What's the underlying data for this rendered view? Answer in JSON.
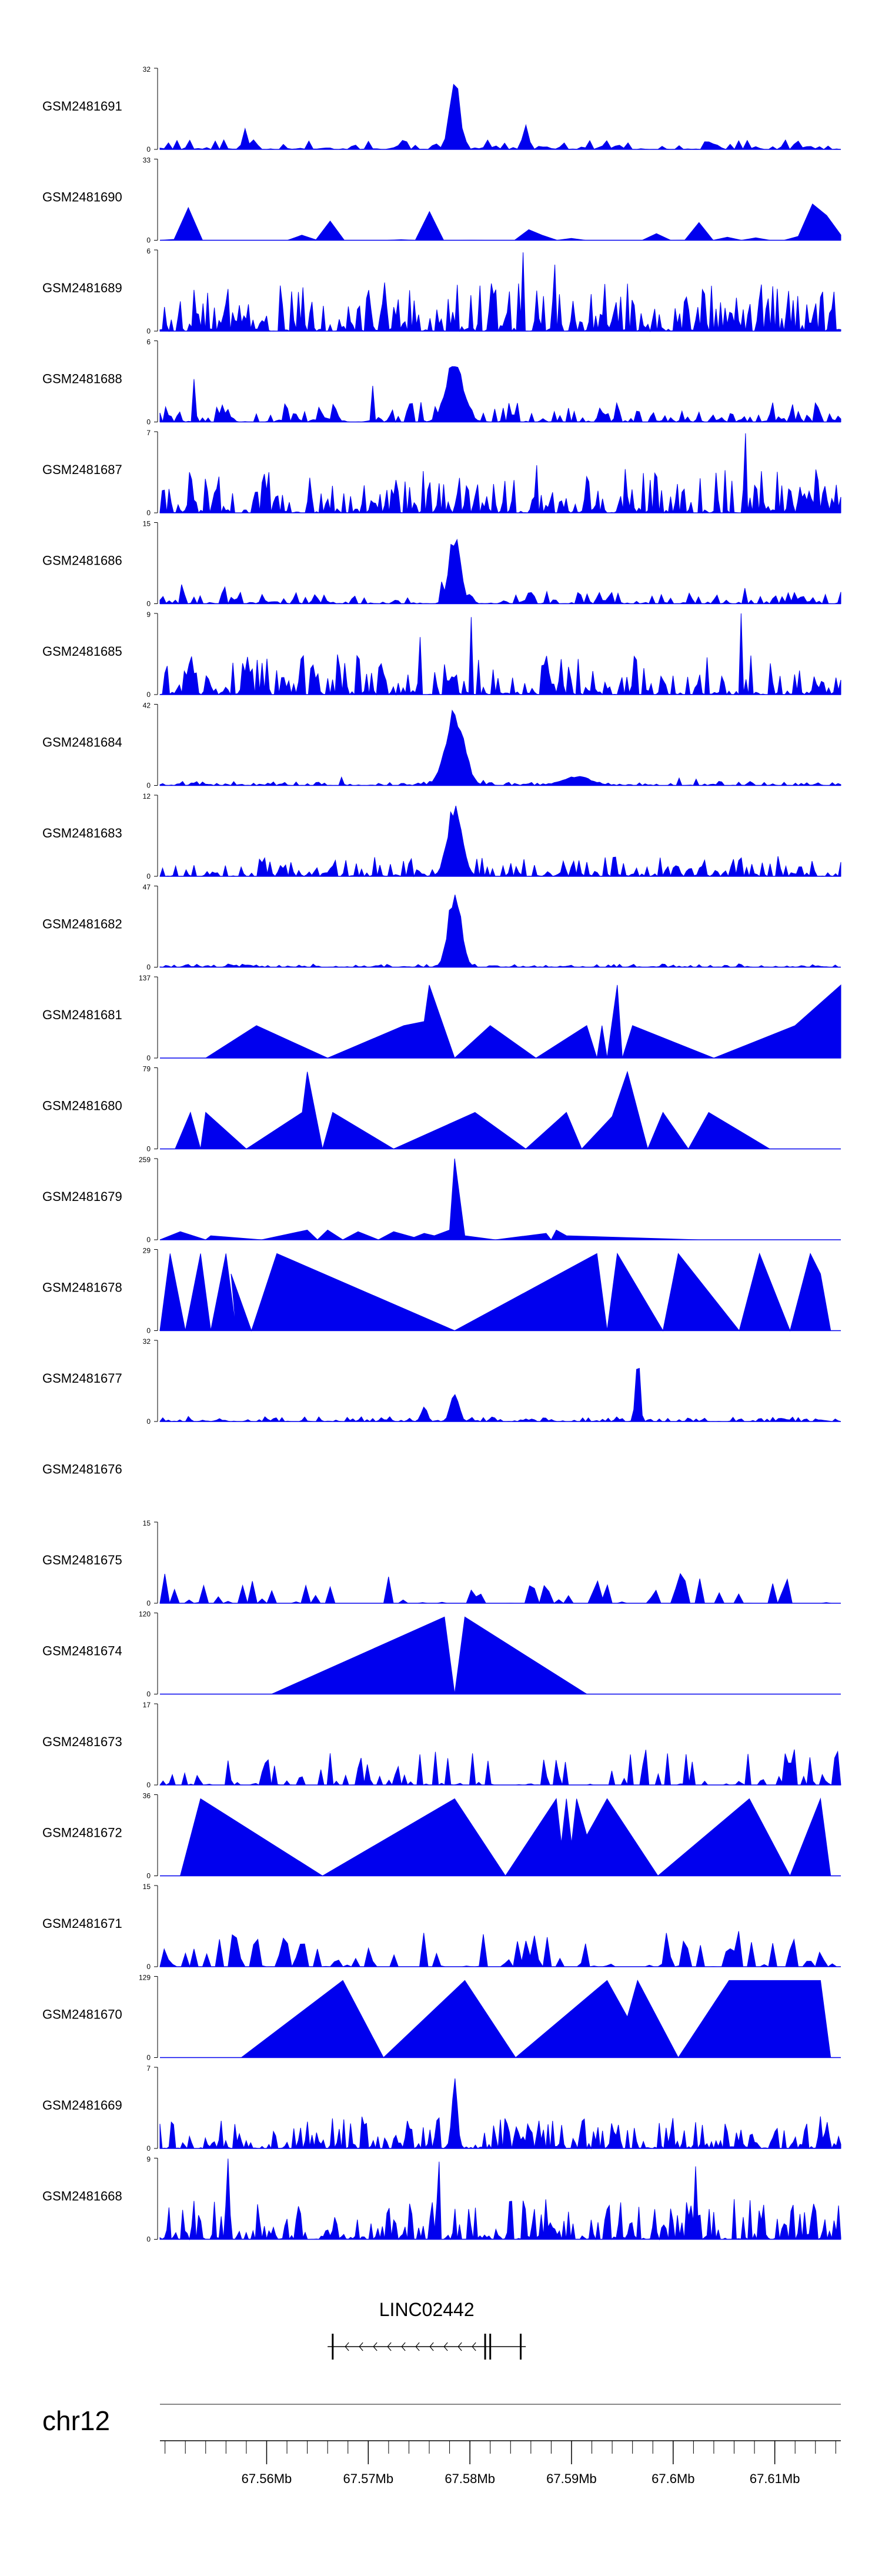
{
  "chart_data": {
    "type": "area",
    "title": "",
    "xlabel": "chr12",
    "x_unit": "Mb",
    "xlim": [
      67.5495,
      67.6165
    ],
    "x_ticks": [
      {
        "value": 67.56,
        "label": "67.56Mb"
      },
      {
        "value": 67.57,
        "label": "67.57Mb"
      },
      {
        "value": 67.58,
        "label": "67.58Mb"
      },
      {
        "value": 67.59,
        "label": "67.59Mb"
      },
      {
        "value": 67.6,
        "label": "67.6Mb"
      },
      {
        "value": 67.61,
        "label": "67.61Mb"
      }
    ],
    "minor_tick_step": 0.002,
    "series": [
      {
        "name": "GSM2481691",
        "ymax": 32,
        "ymin": 0,
        "peaks": [
          [
            67.5785,
            1.0,
            0.0007
          ],
          [
            67.5855,
            0.35,
            0.0004
          ]
        ],
        "noise": 0.12,
        "density": 80,
        "seed": 1
      },
      {
        "name": "GSM2481690",
        "ymax": 33,
        "ymin": 0,
        "peaks": [],
        "noise": 0.45,
        "density": 24,
        "seed": 2,
        "triangles": true
      },
      {
        "name": "GSM2481689",
        "ymax": 6,
        "ymin": 0,
        "peaks": [],
        "noise": 0.6,
        "density": 150,
        "seed": 3
      },
      {
        "name": "GSM2481688",
        "ymax": 6,
        "ymin": 0,
        "peaks": [
          [
            67.5785,
            0.85,
            0.0012
          ]
        ],
        "noise": 0.25,
        "density": 120,
        "seed": 4
      },
      {
        "name": "GSM2481687",
        "ymax": 7,
        "ymin": 0,
        "peaks": [],
        "noise": 0.55,
        "density": 150,
        "seed": 5
      },
      {
        "name": "GSM2481686",
        "ymax": 15,
        "ymin": 0,
        "peaks": [
          [
            67.5785,
            0.95,
            0.0008
          ]
        ],
        "noise": 0.15,
        "density": 110,
        "seed": 6
      },
      {
        "name": "GSM2481685",
        "ymax": 9,
        "ymin": 0,
        "peaks": [],
        "noise": 0.5,
        "density": 140,
        "seed": 7
      },
      {
        "name": "GSM2481684",
        "ymax": 42,
        "ymin": 0,
        "peaks": [
          [
            67.5785,
            1.0,
            0.0013
          ],
          [
            67.5905,
            0.12,
            0.002
          ]
        ],
        "noise": 0.05,
        "density": 120,
        "seed": 8
      },
      {
        "name": "GSM2481683",
        "ymax": 12,
        "ymin": 0,
        "peaks": [
          [
            67.5785,
            0.95,
            0.001
          ]
        ],
        "noise": 0.25,
        "density": 130,
        "seed": 9
      },
      {
        "name": "GSM2481682",
        "ymax": 47,
        "ymin": 0,
        "peaks": [
          [
            67.5785,
            1.0,
            0.0009
          ]
        ],
        "noise": 0.04,
        "density": 120,
        "seed": 10
      },
      {
        "name": "GSM2481681",
        "ymax": 137,
        "ymin": 0,
        "polyline": [
          [
            67.554,
            0
          ],
          [
            67.559,
            0.4
          ],
          [
            67.566,
            0
          ],
          [
            67.5735,
            0.4
          ],
          [
            67.5755,
            0.45
          ],
          [
            67.576,
            0.9
          ],
          [
            67.5785,
            0
          ],
          [
            67.582,
            0.4
          ],
          [
            67.5865,
            0
          ],
          [
            67.5915,
            0.4
          ],
          [
            67.5925,
            0
          ],
          [
            67.593,
            0.4
          ],
          [
            67.5935,
            0
          ],
          [
            67.5945,
            0.9
          ],
          [
            67.595,
            0
          ],
          [
            67.596,
            0.4
          ],
          [
            67.604,
            0
          ],
          [
            67.612,
            0.4
          ],
          [
            67.6165,
            0.9
          ],
          [
            67.6165,
            0
          ]
        ]
      },
      {
        "name": "GSM2481680",
        "ymax": 79,
        "ymin": 0,
        "polyline": [
          [
            67.551,
            0
          ],
          [
            67.5525,
            0.45
          ],
          [
            67.5535,
            0
          ],
          [
            67.554,
            0.45
          ],
          [
            67.558,
            0
          ],
          [
            67.5635,
            0.45
          ],
          [
            67.564,
            0.95
          ],
          [
            67.5655,
            0
          ],
          [
            67.5665,
            0.45
          ],
          [
            67.5725,
            0
          ],
          [
            67.5805,
            0.45
          ],
          [
            67.5855,
            0
          ],
          [
            67.5895,
            0.45
          ],
          [
            67.591,
            0
          ],
          [
            67.594,
            0.4
          ],
          [
            67.5955,
            0.95
          ],
          [
            67.5975,
            0
          ],
          [
            67.599,
            0.45
          ],
          [
            67.6015,
            0
          ],
          [
            67.6035,
            0.45
          ],
          [
            67.6095,
            0
          ]
        ]
      },
      {
        "name": "GSM2481679",
        "ymax": 259,
        "ymin": 0,
        "polyline": [
          [
            67.5495,
            0
          ],
          [
            67.5515,
            0.1
          ],
          [
            67.554,
            0
          ],
          [
            67.5545,
            0.05
          ],
          [
            67.5595,
            0
          ],
          [
            67.564,
            0.12
          ],
          [
            67.565,
            0
          ],
          [
            67.566,
            0.12
          ],
          [
            67.5675,
            0
          ],
          [
            67.569,
            0.1
          ],
          [
            67.571,
            0
          ],
          [
            67.5725,
            0.1
          ],
          [
            67.5745,
            0.03
          ],
          [
            67.5755,
            0.08
          ],
          [
            67.5765,
            0.05
          ],
          [
            67.578,
            0.12
          ],
          [
            67.5785,
            1.0
          ],
          [
            67.5795,
            0.05
          ],
          [
            67.5825,
            0
          ],
          [
            67.5875,
            0.08
          ],
          [
            67.588,
            0
          ],
          [
            67.5885,
            0.12
          ],
          [
            67.5895,
            0.05
          ],
          [
            67.6025,
            0
          ]
        ]
      },
      {
        "name": "GSM2481678",
        "ymax": 29,
        "ymin": 0,
        "polyline": [
          [
            67.5495,
            0
          ],
          [
            67.5505,
            0.95
          ],
          [
            67.552,
            0
          ],
          [
            67.5535,
            0.95
          ],
          [
            67.5545,
            0
          ],
          [
            67.556,
            0.95
          ],
          [
            67.557,
            0
          ],
          [
            67.5565,
            0.7
          ],
          [
            67.5585,
            0
          ],
          [
            67.561,
            0.95
          ],
          [
            67.5785,
            0
          ],
          [
            67.5925,
            0.95
          ],
          [
            67.5935,
            0
          ],
          [
            67.5945,
            0.95
          ],
          [
            67.599,
            0
          ],
          [
            67.6005,
            0.95
          ],
          [
            67.6065,
            0
          ],
          [
            67.6085,
            0.95
          ],
          [
            67.6115,
            0
          ],
          [
            67.6135,
            0.95
          ],
          [
            67.6145,
            0.7
          ],
          [
            67.6155,
            0
          ]
        ]
      },
      {
        "name": "GSM2481677",
        "ymax": 32,
        "ymin": 0,
        "peaks": [
          [
            67.5785,
            0.35,
            0.0006
          ],
          [
            67.5965,
            0.95,
            0.0003
          ],
          [
            67.5755,
            0.2,
            0.0004
          ]
        ],
        "noise": 0.06,
        "density": 120,
        "seed": 14
      },
      {
        "name": "GSM2481676",
        "ymax": null,
        "ymin": null,
        "empty": true
      },
      {
        "name": "GSM2481675",
        "ymax": 15,
        "ymin": 0,
        "peaks": [],
        "noise": 0.45,
        "density": 70,
        "seed": 16,
        "triangles": true
      },
      {
        "name": "GSM2481674",
        "ymax": 120,
        "ymin": 0,
        "polyline": [
          [
            67.5605,
            0
          ],
          [
            67.5775,
            0.95
          ],
          [
            67.5785,
            0
          ],
          [
            67.5795,
            0.95
          ],
          [
            67.5915,
            0
          ]
        ]
      },
      {
        "name": "GSM2481673",
        "ymax": 17,
        "ymin": 0,
        "peaks": [],
        "noise": 0.45,
        "density": 110,
        "seed": 18,
        "triangles": true
      },
      {
        "name": "GSM2481672",
        "ymax": 36,
        "ymin": 0,
        "polyline": [
          [
            67.5515,
            0
          ],
          [
            67.5535,
            0.95
          ],
          [
            67.5655,
            0
          ],
          [
            67.5785,
            0.95
          ],
          [
            67.5835,
            0
          ],
          [
            67.5885,
            0.95
          ],
          [
            67.589,
            0.4
          ],
          [
            67.5895,
            0.95
          ],
          [
            67.59,
            0.4
          ],
          [
            67.5905,
            0.95
          ],
          [
            67.5915,
            0.5
          ],
          [
            67.5935,
            0.95
          ],
          [
            67.5985,
            0
          ],
          [
            67.6075,
            0.95
          ],
          [
            67.6115,
            0
          ],
          [
            67.6145,
            0.95
          ],
          [
            67.6155,
            0
          ]
        ]
      },
      {
        "name": "GSM2481671",
        "ymax": 15,
        "ymin": 0,
        "peaks": [],
        "noise": 0.45,
        "density": 80,
        "seed": 20,
        "triangles": true
      },
      {
        "name": "GSM2481670",
        "ymax": 129,
        "ymin": 0,
        "polyline": [
          [
            67.5575,
            0
          ],
          [
            67.5675,
            0.95
          ],
          [
            67.5715,
            0
          ],
          [
            67.5795,
            0.95
          ],
          [
            67.5845,
            0
          ],
          [
            67.5935,
            0.95
          ],
          [
            67.5955,
            0.5
          ],
          [
            67.5965,
            0.95
          ],
          [
            67.6005,
            0
          ],
          [
            67.6055,
            0.95
          ],
          [
            67.6145,
            0.95
          ],
          [
            67.6155,
            0
          ]
        ]
      },
      {
        "name": "GSM2481669",
        "ymax": 7,
        "ymin": 0,
        "peaks": [
          [
            67.5785,
            0.9,
            0.0004
          ]
        ],
        "noise": 0.4,
        "density": 150,
        "seed": 22
      },
      {
        "name": "GSM2481668",
        "ymax": 9,
        "ymin": 0,
        "peaks": [],
        "noise": 0.5,
        "density": 150,
        "seed": 23
      }
    ],
    "gene": {
      "name": "LINC02442",
      "start": 67.566,
      "end": 67.5855,
      "strand": "-",
      "exons": [
        67.5665,
        67.5815,
        67.582,
        67.585
      ]
    },
    "colors": {
      "signal": "#0000ee",
      "axis": "#000000",
      "label": "#000000",
      "gene": "#000000",
      "ideogram": "#888888"
    }
  }
}
